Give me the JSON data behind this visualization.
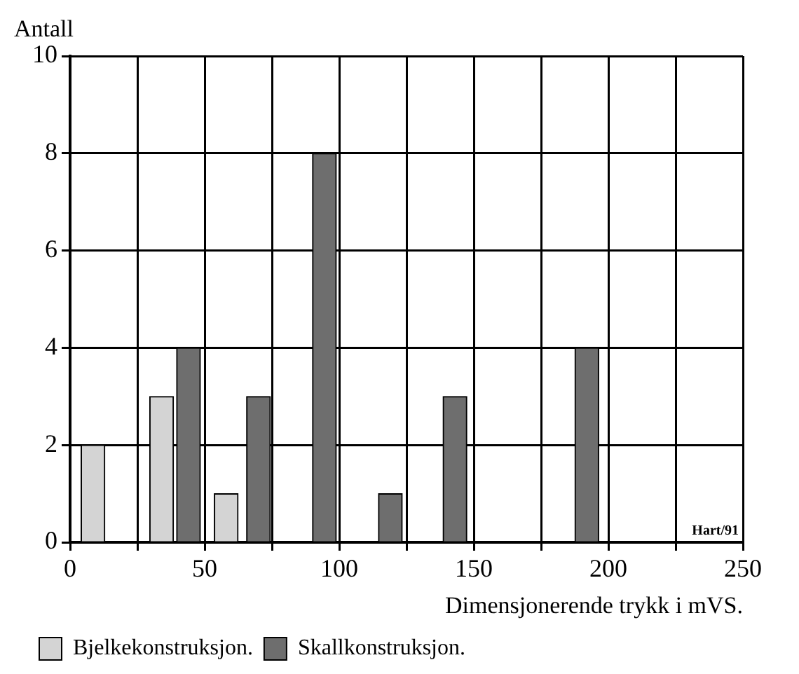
{
  "chart_data": {
    "type": "bar",
    "ylabel": "Antall",
    "xlabel": "Dimensjonerende trykk i mVS.",
    "series": [
      {
        "name": "Bjelkekonstruksjon.",
        "color": "#d4d4d4",
        "x": [
          8.5,
          34,
          58
        ],
        "values": [
          2,
          3,
          1
        ]
      },
      {
        "name": "Skallkonstruksjon.",
        "color": "#6e6e6e",
        "x": [
          44,
          70,
          94.5,
          119,
          143,
          192
        ],
        "values": [
          4,
          3,
          8,
          1,
          3,
          4
        ]
      }
    ],
    "xlim": [
      0,
      250
    ],
    "xticks": [
      0,
      {
        "value": 25,
        "label": null
      },
      50,
      {
        "value": 75,
        "label": null
      },
      100,
      {
        "value": 125,
        "label": null
      },
      150,
      {
        "value": 175,
        "label": null
      },
      200,
      {
        "value": 225,
        "label": null
      },
      250
    ],
    "ylim": [
      0,
      10
    ],
    "yticks": [
      0,
      2,
      4,
      6,
      8,
      10
    ],
    "grid": true,
    "legend": "bottom left",
    "annotations": [
      "Hart/91"
    ]
  }
}
